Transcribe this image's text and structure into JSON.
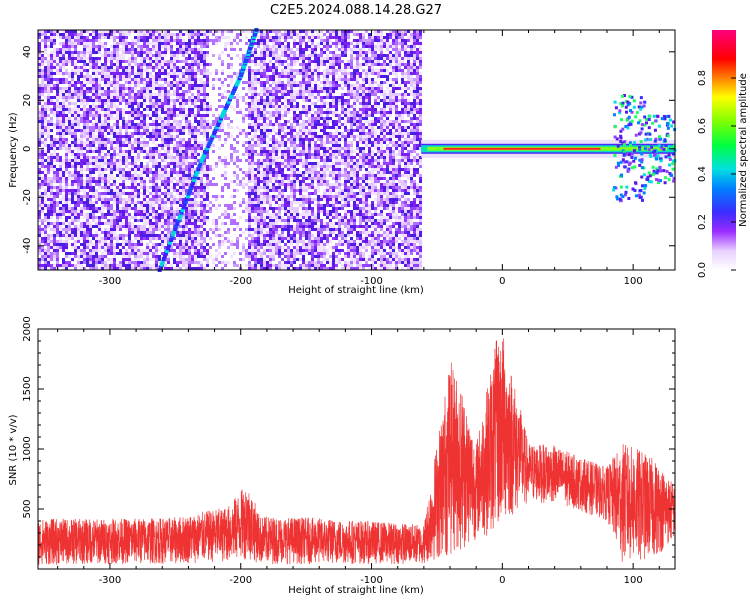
{
  "title": "C2E5.2024.088.14.28.G27",
  "colors": {
    "snr_line": "#ef3333",
    "axis": "#000000",
    "background": "#ffffff"
  },
  "chart_data": [
    {
      "type": "heatmap",
      "xlabel": "Height of straight line (km)",
      "ylabel": "Frequency (Hz)",
      "xlim": [
        -355,
        132
      ],
      "ylim": [
        -50,
        49
      ],
      "xticks": [
        -300,
        -200,
        -100,
        0,
        100
      ],
      "xtick_labels": [
        "-300",
        "-200",
        "-100",
        "0",
        "100"
      ],
      "yticks": [
        -40,
        -20,
        0,
        20,
        40
      ],
      "ytick_labels": [
        "-40",
        "-20",
        "0",
        "20",
        "40"
      ],
      "grid": false,
      "noise_region_x": [
        -355,
        -62
      ],
      "clean_region_x": [
        -62,
        85
      ],
      "signal_track": {
        "description_points": [
          [
            -262,
            -50
          ],
          [
            -230,
            -5
          ],
          [
            -200,
            30
          ],
          [
            -188,
            49
          ]
        ]
      },
      "carrier_band": {
        "x": [
          -62,
          132
        ],
        "y": 0
      },
      "colorbar": {
        "label": "Normalized spectral amplitude",
        "ticks": [
          0.0,
          0.2,
          0.4,
          0.6,
          0.8
        ],
        "tick_labels": [
          "0.0",
          "0.2",
          "0.4",
          "0.6",
          "0.8"
        ],
        "range": [
          0,
          1
        ]
      }
    },
    {
      "type": "line",
      "xlabel": "Height of straight line (km)",
      "ylabel": "SNR (10 * v/v)",
      "xlim": [
        -355,
        132
      ],
      "ylim": [
        0,
        2000
      ],
      "xticks": [
        -300,
        -200,
        -100,
        0,
        100
      ],
      "xtick_labels": [
        "-300",
        "-200",
        "-100",
        "0",
        "100"
      ],
      "yticks": [
        500,
        1000,
        1500,
        2000
      ],
      "ytick_labels": [
        "500",
        "1000",
        "1500",
        "2000"
      ],
      "grid": false,
      "series": [
        {
          "color": "#ef3333",
          "envelope": [
            {
              "x": -355,
              "low": 30,
              "high": 420
            },
            {
              "x": -300,
              "low": 40,
              "high": 420
            },
            {
              "x": -250,
              "low": 40,
              "high": 430
            },
            {
              "x": -210,
              "low": 60,
              "high": 520
            },
            {
              "x": -195,
              "low": 80,
              "high": 720
            },
            {
              "x": -185,
              "low": 40,
              "high": 440
            },
            {
              "x": -150,
              "low": 40,
              "high": 430
            },
            {
              "x": -100,
              "low": 40,
              "high": 400
            },
            {
              "x": -60,
              "low": 40,
              "high": 370
            },
            {
              "x": -40,
              "low": 100,
              "high": 1750
            },
            {
              "x": -30,
              "low": 150,
              "high": 1500
            },
            {
              "x": -20,
              "low": 250,
              "high": 1050
            },
            {
              "x": -5,
              "low": 300,
              "high": 1900
            },
            {
              "x": 0,
              "low": 350,
              "high": 2000
            },
            {
              "x": 20,
              "low": 550,
              "high": 1050
            },
            {
              "x": 40,
              "low": 550,
              "high": 1030
            },
            {
              "x": 60,
              "low": 480,
              "high": 930
            },
            {
              "x": 80,
              "low": 400,
              "high": 850
            },
            {
              "x": 92,
              "low": 40,
              "high": 1050
            },
            {
              "x": 105,
              "low": 50,
              "high": 1000
            },
            {
              "x": 118,
              "low": 100,
              "high": 900
            },
            {
              "x": 132,
              "low": 250,
              "high": 700
            }
          ]
        }
      ]
    }
  ]
}
